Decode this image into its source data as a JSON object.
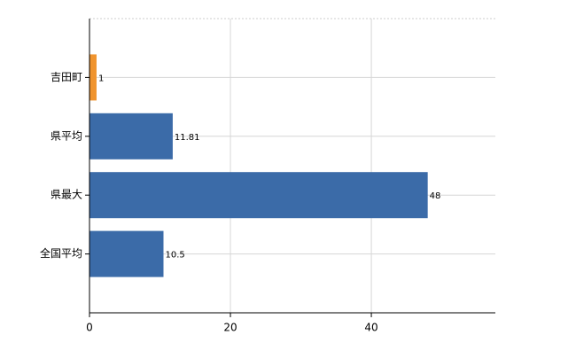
{
  "chart_data": {
    "type": "bar",
    "orientation": "horizontal",
    "categories": [
      "吉田町",
      "県平均",
      "県最大",
      "全国平均"
    ],
    "values": [
      1,
      11.81,
      48,
      10.5
    ],
    "colors": [
      "#f0942e",
      "#3b6ba8",
      "#3b6ba8",
      "#3b6ba8"
    ],
    "xlim": [
      0,
      57.6
    ],
    "xticks": [
      0,
      20,
      40
    ],
    "grid": true
  }
}
